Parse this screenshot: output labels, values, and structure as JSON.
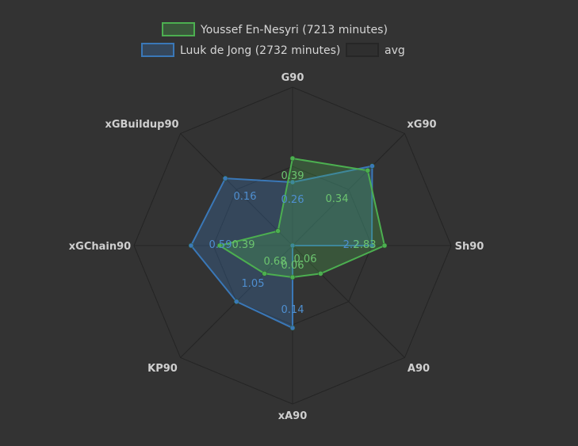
{
  "chart_data": {
    "type": "radar",
    "axes": [
      "G90",
      "xG90",
      "Sh90",
      "A90",
      "xA90",
      "KP90",
      "xGChain90",
      "xGBuildup90"
    ],
    "series": [
      {
        "name": "Youssef En-Nesyri (7213 minutes)",
        "color": "#4caf50",
        "values": [
          0.55,
          0.67,
          0.58,
          0.25,
          0.2,
          0.25,
          0.46,
          0.13
        ],
        "labels": [
          "0.39",
          "0.34",
          "2.83",
          "",
          "0.06",
          "0.68",
          "0.39",
          ""
        ],
        "label_flags": [
          1,
          1,
          1,
          0,
          1,
          1,
          1,
          0
        ]
      },
      {
        "name": "Luuk de Jong (2732 minutes)",
        "color": "#3a78b8",
        "values": [
          0.4,
          0.71,
          0.5,
          0.0,
          0.52,
          0.5,
          0.64,
          0.6
        ],
        "labels": [
          "0.26",
          "",
          "2.2",
          "",
          "0.14",
          "1.05",
          "0.59",
          "0.16"
        ],
        "label_flags": [
          1,
          1,
          1,
          0,
          1,
          1,
          1,
          1
        ]
      },
      {
        "name": "avg",
        "color": "#2a2a2a",
        "values": [],
        "labels": [],
        "label_flags": []
      }
    ],
    "extra_labels": [
      {
        "text": "0.06",
        "series": 0,
        "axis": 3
      },
      {
        "text": "0.06",
        "series": 0,
        "axis": 2,
        "note": ""
      }
    ],
    "legend_position": "top-center",
    "grid": true
  }
}
